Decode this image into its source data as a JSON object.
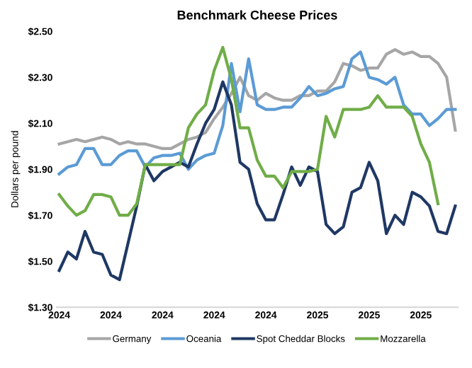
{
  "chart_data": {
    "type": "line",
    "title": "Benchmark Cheese Prices",
    "ylabel": "Dollars per pound",
    "categories": [
      "2024",
      null,
      null,
      null,
      null,
      null,
      "2024",
      null,
      null,
      null,
      null,
      null,
      "2024",
      null,
      null,
      null,
      null,
      null,
      "2024",
      null,
      null,
      null,
      null,
      null,
      "2024",
      null,
      null,
      null,
      null,
      null,
      "2025",
      null,
      null,
      null,
      null,
      null,
      "2025",
      null,
      null,
      null,
      null,
      null,
      "2025",
      null,
      null,
      null,
      null
    ],
    "ylim": [
      1.3,
      2.5
    ],
    "yticks": [
      {
        "value": 1.3,
        "label": "$1.30"
      },
      {
        "value": 1.5,
        "label": "$1.50"
      },
      {
        "value": 1.7,
        "label": "$1.70"
      },
      {
        "value": 1.9,
        "label": "$1.90"
      },
      {
        "value": 2.1,
        "label": "$2.10"
      },
      {
        "value": 2.3,
        "label": "$2.30"
      },
      {
        "value": 2.5,
        "label": "$2.50"
      }
    ],
    "grid": false,
    "legend": "bottom",
    "marker": "none",
    "line_style": "solid",
    "series": [
      {
        "name": "Germany",
        "color": "#a6a6a6",
        "values": [
          2.01,
          2.02,
          2.03,
          2.02,
          2.03,
          2.04,
          2.03,
          2.01,
          2.02,
          2.01,
          2.01,
          2.0,
          1.99,
          1.99,
          2.01,
          2.03,
          2.04,
          2.06,
          2.12,
          2.17,
          2.23,
          2.3,
          2.22,
          2.2,
          2.23,
          2.21,
          2.2,
          2.2,
          2.22,
          2.22,
          2.24,
          2.24,
          2.28,
          2.36,
          2.35,
          2.33,
          2.34,
          2.34,
          2.4,
          2.42,
          2.4,
          2.41,
          2.39,
          2.39,
          2.36,
          2.3,
          2.07
        ]
      },
      {
        "name": "Oceania",
        "color": "#5b9bd5",
        "values": [
          1.88,
          1.91,
          1.92,
          1.99,
          1.99,
          1.92,
          1.92,
          1.96,
          1.98,
          1.98,
          1.91,
          1.95,
          1.96,
          1.96,
          1.97,
          1.9,
          1.94,
          1.96,
          1.97,
          2.09,
          2.36,
          2.15,
          2.38,
          2.18,
          2.16,
          2.16,
          2.17,
          2.17,
          2.21,
          2.26,
          2.22,
          2.23,
          2.25,
          2.26,
          2.38,
          2.41,
          2.3,
          2.29,
          2.27,
          2.3,
          2.18,
          2.14,
          2.14,
          2.09,
          2.12,
          2.16,
          2.16
        ]
      },
      {
        "name": "Spot Cheddar Blocks",
        "color": "#1f3864",
        "values": [
          1.46,
          1.54,
          1.51,
          1.63,
          1.54,
          1.53,
          1.44,
          1.42,
          1.58,
          1.74,
          1.92,
          1.85,
          1.89,
          1.91,
          1.93,
          1.91,
          2.01,
          2.1,
          2.16,
          2.28,
          2.18,
          1.93,
          1.9,
          1.75,
          1.68,
          1.68,
          1.79,
          1.91,
          1.83,
          1.91,
          1.89,
          1.66,
          1.62,
          1.65,
          1.8,
          1.82,
          1.93,
          1.85,
          1.62,
          1.7,
          1.66,
          1.8,
          1.78,
          1.74,
          1.63,
          1.62,
          1.74
        ]
      },
      {
        "name": "Mozzarella",
        "color": "#70ad47",
        "values": [
          1.79,
          1.74,
          1.7,
          1.72,
          1.79,
          1.79,
          1.78,
          1.7,
          1.7,
          1.75,
          1.92,
          1.92,
          1.92,
          1.92,
          1.92,
          2.08,
          2.14,
          2.18,
          2.33,
          2.43,
          2.29,
          2.08,
          2.08,
          1.94,
          1.87,
          1.87,
          1.82,
          1.89,
          1.89,
          1.89,
          1.9,
          2.13,
          2.04,
          2.16,
          2.16,
          2.16,
          2.17,
          2.22,
          2.17,
          2.17,
          2.17,
          2.13,
          2.01,
          1.93,
          1.75,
          null,
          null
        ]
      }
    ]
  }
}
